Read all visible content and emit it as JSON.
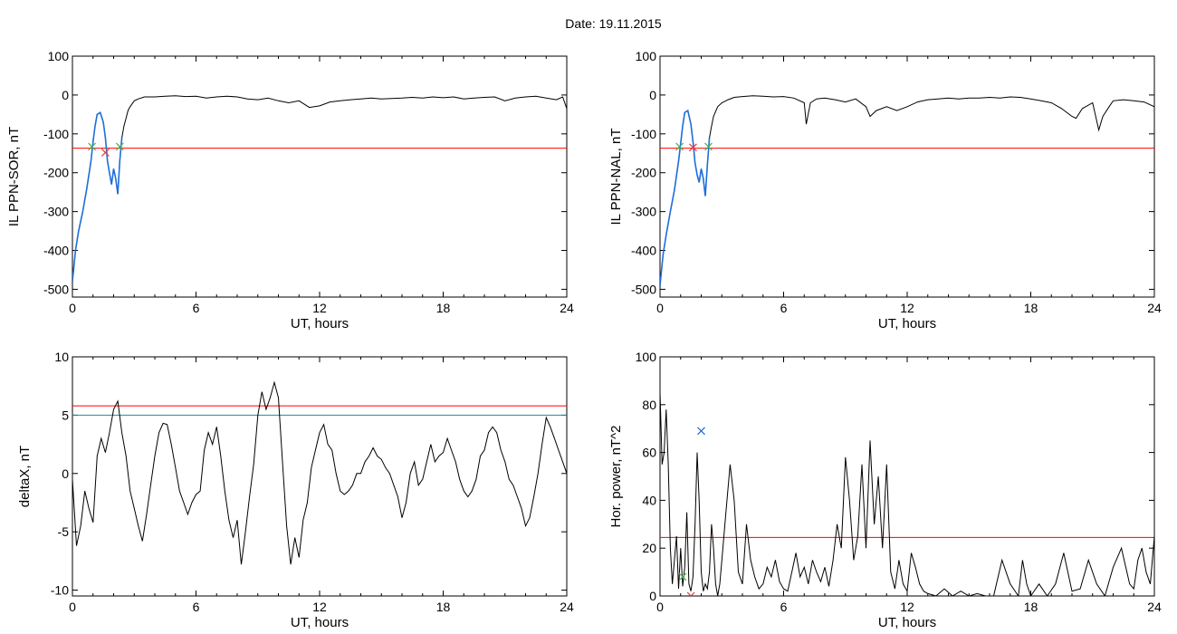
{
  "header": {
    "title": "Date:  19.11.2015"
  },
  "chart_data": [
    {
      "type": "line",
      "xlabel": "UT, hours",
      "ylabel": "IL PPN-SOR, nT",
      "xlim": [
        0,
        24
      ],
      "ylim": [
        -520,
        100
      ],
      "xticks": [
        0,
        6,
        12,
        18,
        24
      ],
      "yticks": [
        100,
        0,
        -100,
        -200,
        -300,
        -400,
        -500
      ],
      "threshold": {
        "value": -137,
        "color": "#ff0000"
      },
      "series": [
        {
          "color": "#000000",
          "x": [
            0,
            0.15,
            0.3,
            0.5,
            0.7,
            0.9,
            1.0,
            1.1,
            1.2,
            1.35,
            1.5,
            1.6,
            1.7,
            1.8,
            1.9,
            2.0,
            2.1,
            2.2,
            2.3,
            2.4,
            2.5,
            2.6,
            2.7,
            2.8,
            3.0,
            3.2,
            3.5,
            4,
            4.5,
            5,
            5.5,
            6,
            6.5,
            7,
            7.5,
            8,
            8.5,
            9,
            9.5,
            10,
            10.5,
            11,
            11.5,
            12,
            12.5,
            13,
            13.5,
            14,
            14.5,
            15,
            15.5,
            16,
            16.5,
            17,
            17.5,
            18,
            18.5,
            19,
            19.5,
            20,
            20.5,
            21,
            21.5,
            22,
            22.5,
            23,
            23.5,
            23.8,
            24
          ],
          "y": [
            -480,
            -400,
            -350,
            -300,
            -240,
            -170,
            -120,
            -80,
            -50,
            -45,
            -70,
            -110,
            -170,
            -200,
            -230,
            -190,
            -215,
            -255,
            -170,
            -110,
            -80,
            -60,
            -40,
            -30,
            -15,
            -10,
            -5,
            -5,
            -3,
            -2,
            -4,
            -3,
            -8,
            -5,
            -3,
            -5,
            -10,
            -12,
            -8,
            -15,
            -20,
            -15,
            -32,
            -28,
            -18,
            -15,
            -12,
            -10,
            -8,
            -10,
            -9,
            -8,
            -6,
            -8,
            -5,
            -7,
            -5,
            -10,
            -8,
            -6,
            -5,
            -15,
            -8,
            -5,
            -3,
            -8,
            -12,
            -5,
            -35
          ]
        },
        {
          "color": "#1e6fd9",
          "x": [
            0,
            0.15,
            0.3,
            0.5,
            0.7,
            0.9,
            1.0,
            1.1,
            1.2,
            1.35,
            1.5,
            1.6,
            1.7,
            1.8,
            1.9,
            2.0,
            2.1,
            2.2,
            2.3,
            2.4
          ],
          "y": [
            -480,
            -400,
            -350,
            -300,
            -240,
            -170,
            -120,
            -80,
            -50,
            -45,
            -70,
            -110,
            -170,
            -200,
            -230,
            -190,
            -215,
            -255,
            -170,
            -110
          ]
        }
      ],
      "markers": [
        {
          "x": 0.95,
          "y": -133,
          "color": "#4caf50"
        },
        {
          "x": 1.6,
          "y": -148,
          "color": "#e53935"
        },
        {
          "x": 2.3,
          "y": -133,
          "color": "#4caf50"
        }
      ]
    },
    {
      "type": "line",
      "xlabel": "UT, hours",
      "ylabel": "IL PPN-NAL, nT",
      "xlim": [
        0,
        24
      ],
      "ylim": [
        -520,
        100
      ],
      "xticks": [
        0,
        6,
        12,
        18,
        24
      ],
      "yticks": [
        100,
        0,
        -100,
        -200,
        -300,
        -400,
        -500
      ],
      "threshold": {
        "value": -137,
        "color": "#ff0000"
      },
      "series": [
        {
          "color": "#000000",
          "x": [
            0,
            0.15,
            0.3,
            0.5,
            0.7,
            0.9,
            1.0,
            1.1,
            1.2,
            1.35,
            1.5,
            1.6,
            1.7,
            1.8,
            1.9,
            2.0,
            2.1,
            2.2,
            2.3,
            2.4,
            2.5,
            2.6,
            2.8,
            3.0,
            3.3,
            3.6,
            4,
            4.5,
            5,
            5.5,
            6,
            6.5,
            7,
            7.1,
            7.3,
            7.6,
            8,
            8.5,
            9,
            9.5,
            10,
            10.2,
            10.5,
            11,
            11.5,
            12,
            12.5,
            13,
            13.5,
            14,
            14.5,
            15,
            15.5,
            16,
            16.5,
            17,
            17.5,
            18,
            18.5,
            19,
            19.5,
            20,
            20.2,
            20.5,
            21,
            21.3,
            21.5,
            21.8,
            22,
            22.5,
            23,
            23.5,
            24
          ],
          "y": [
            -490,
            -410,
            -360,
            -300,
            -245,
            -170,
            -125,
            -80,
            -45,
            -40,
            -75,
            -120,
            -175,
            -205,
            -225,
            -190,
            -215,
            -260,
            -180,
            -110,
            -80,
            -55,
            -30,
            -20,
            -12,
            -6,
            -4,
            -2,
            -3,
            -5,
            -4,
            -8,
            -20,
            -75,
            -20,
            -10,
            -8,
            -12,
            -18,
            -10,
            -30,
            -55,
            -40,
            -30,
            -40,
            -30,
            -18,
            -12,
            -10,
            -8,
            -10,
            -8,
            -8,
            -6,
            -8,
            -5,
            -6,
            -10,
            -15,
            -20,
            -35,
            -55,
            -60,
            -35,
            -20,
            -90,
            -55,
            -30,
            -15,
            -12,
            -15,
            -18,
            -30
          ]
        },
        {
          "color": "#1e6fd9",
          "x": [
            0,
            0.15,
            0.3,
            0.5,
            0.7,
            0.9,
            1.0,
            1.1,
            1.2,
            1.35,
            1.5,
            1.6,
            1.7,
            1.8,
            1.9,
            2.0,
            2.1,
            2.2,
            2.3,
            2.4
          ],
          "y": [
            -490,
            -410,
            -360,
            -300,
            -245,
            -170,
            -125,
            -80,
            -45,
            -40,
            -75,
            -120,
            -175,
            -205,
            -225,
            -190,
            -215,
            -260,
            -180,
            -110
          ]
        }
      ],
      "markers": [
        {
          "x": 0.95,
          "y": -133,
          "color": "#4caf50"
        },
        {
          "x": 1.6,
          "y": -135,
          "color": "#e53935"
        },
        {
          "x": 2.35,
          "y": -133,
          "color": "#4caf50"
        }
      ]
    },
    {
      "type": "line",
      "xlabel": "UT, hours",
      "ylabel": "deltaX, nT",
      "xlim": [
        0,
        24
      ],
      "ylim": [
        -10.5,
        10
      ],
      "xticks": [
        0,
        6,
        12,
        18,
        24
      ],
      "yticks": [
        10,
        5,
        0,
        -5,
        -10
      ],
      "thresholds": [
        {
          "value": 5.8,
          "color": "#ff0000"
        },
        {
          "value": 5.0,
          "color": "#1a8fa0"
        }
      ],
      "series": [
        {
          "color": "#000000",
          "x": [
            0,
            0.2,
            0.4,
            0.6,
            0.8,
            1.0,
            1.2,
            1.4,
            1.6,
            1.8,
            2.0,
            2.2,
            2.4,
            2.6,
            2.8,
            3.0,
            3.2,
            3.4,
            3.6,
            3.8,
            4.0,
            4.2,
            4.4,
            4.6,
            4.8,
            5.0,
            5.2,
            5.4,
            5.6,
            5.8,
            6.0,
            6.2,
            6.4,
            6.6,
            6.8,
            7.0,
            7.2,
            7.4,
            7.6,
            7.8,
            8.0,
            8.2,
            8.4,
            8.6,
            8.8,
            9.0,
            9.2,
            9.4,
            9.6,
            9.8,
            10.0,
            10.2,
            10.4,
            10.6,
            10.8,
            11.0,
            11.2,
            11.4,
            11.6,
            11.8,
            12.0,
            12.2,
            12.4,
            12.6,
            12.8,
            13.0,
            13.2,
            13.4,
            13.6,
            13.8,
            14.0,
            14.2,
            14.4,
            14.6,
            14.8,
            15.0,
            15.2,
            15.4,
            15.6,
            15.8,
            16.0,
            16.2,
            16.4,
            16.6,
            16.8,
            17.0,
            17.2,
            17.4,
            17.6,
            17.8,
            18.0,
            18.2,
            18.4,
            18.6,
            18.8,
            19.0,
            19.2,
            19.4,
            19.6,
            19.8,
            20.0,
            20.2,
            20.4,
            20.6,
            20.8,
            21.0,
            21.2,
            21.4,
            21.6,
            21.8,
            22.0,
            22.2,
            22.4,
            22.6,
            22.8,
            23.0,
            23.2,
            23.4,
            23.6,
            23.8,
            24.0
          ],
          "y": [
            -0.5,
            -6.2,
            -4.5,
            -1.5,
            -3,
            -4.2,
            1.5,
            3,
            1.8,
            3.5,
            5.5,
            6.2,
            3.5,
            1.5,
            -1.5,
            -3,
            -4.5,
            -5.8,
            -3.5,
            -1,
            1.5,
            3.5,
            4.3,
            4.2,
            2.5,
            0.5,
            -1.5,
            -2.5,
            -3.5,
            -2.5,
            -1.8,
            -1.5,
            2,
            3.5,
            2.5,
            4,
            1.5,
            -1.5,
            -4,
            -5.5,
            -4,
            -7.8,
            -5,
            -2,
            0.8,
            5,
            7,
            5.5,
            6.5,
            7.8,
            6.5,
            1,
            -4.5,
            -7.8,
            -5.5,
            -7.2,
            -4,
            -2.5,
            0.5,
            2,
            3.5,
            4.2,
            2.5,
            2,
            0,
            -1.5,
            -1.8,
            -1.5,
            -1,
            0,
            0,
            1,
            1.5,
            2.2,
            1.5,
            1.2,
            0.5,
            0,
            -1,
            -2,
            -3.8,
            -2.5,
            0,
            1,
            -1,
            -0.5,
            1,
            2.5,
            1,
            1.5,
            1.8,
            3,
            2,
            1,
            -0.5,
            -1.5,
            -2,
            -1.5,
            -0.5,
            1.5,
            2,
            3.5,
            4,
            3.5,
            2,
            1,
            -0.5,
            -1,
            -2,
            -3,
            -4.5,
            -3.8,
            -2,
            0,
            2.5,
            4.8,
            4,
            3,
            2,
            1,
            0
          ],
          "_trim": true
        }
      ]
    },
    {
      "type": "line",
      "xlabel": "UT, hours",
      "ylabel": "Hor. power, nT^2",
      "xlim": [
        0,
        24
      ],
      "ylim": [
        0,
        100
      ],
      "xticks": [
        0,
        6,
        12,
        18,
        24
      ],
      "yticks": [
        100,
        80,
        60,
        40,
        20,
        0
      ],
      "threshold": {
        "value": 24.5,
        "color": "#ff0000"
      },
      "series": [
        {
          "color": "#000000",
          "x": [
            0,
            0.1,
            0.2,
            0.3,
            0.4,
            0.5,
            0.6,
            0.7,
            0.8,
            0.9,
            1.0,
            1.1,
            1.2,
            1.3,
            1.4,
            1.5,
            1.6,
            1.7,
            1.8,
            1.9,
            2.0,
            2.1,
            2.2,
            2.3,
            2.4,
            2.5,
            2.6,
            2.7,
            2.8,
            2.9,
            3.0,
            3.2,
            3.4,
            3.6,
            3.8,
            4.0,
            4.2,
            4.4,
            4.6,
            4.8,
            5.0,
            5.2,
            5.4,
            5.6,
            5.8,
            6.0,
            6.2,
            6.4,
            6.6,
            6.8,
            7.0,
            7.2,
            7.4,
            7.6,
            7.8,
            8.0,
            8.2,
            8.4,
            8.6,
            8.8,
            9.0,
            9.2,
            9.4,
            9.6,
            9.8,
            10.0,
            10.2,
            10.4,
            10.6,
            10.8,
            11.0,
            11.2,
            11.4,
            11.6,
            11.8,
            12.0,
            12.2,
            12.4,
            12.6,
            12.8,
            13.0,
            13.4,
            13.8,
            14.2,
            14.6,
            15.0,
            15.4,
            15.8,
            16.2,
            16.6,
            17.0,
            17.4,
            17.6,
            17.8,
            18.0,
            18.4,
            18.8,
            19.2,
            19.6,
            20.0,
            20.4,
            20.8,
            21.2,
            21.6,
            22.0,
            22.4,
            22.8,
            23.0,
            23.2,
            23.4,
            23.6,
            23.8,
            24.0
          ],
          "y": [
            85,
            55,
            60,
            78,
            55,
            20,
            5,
            15,
            25,
            3,
            20,
            4,
            12,
            35,
            5,
            2,
            8,
            30,
            60,
            40,
            10,
            2,
            5,
            3,
            10,
            30,
            20,
            5,
            0,
            5,
            15,
            35,
            55,
            40,
            10,
            5,
            30,
            15,
            8,
            3,
            5,
            12,
            8,
            15,
            6,
            3,
            2,
            10,
            18,
            8,
            12,
            5,
            15,
            10,
            6,
            12,
            4,
            15,
            30,
            20,
            58,
            40,
            15,
            25,
            55,
            20,
            65,
            30,
            50,
            20,
            55,
            10,
            3,
            15,
            5,
            2,
            18,
            12,
            5,
            2,
            1,
            0,
            3,
            0,
            2,
            0,
            1,
            0,
            0,
            15,
            5,
            0,
            15,
            5,
            0,
            5,
            0,
            5,
            18,
            2,
            3,
            15,
            5,
            0,
            12,
            20,
            5,
            3,
            15,
            20,
            10,
            5,
            25
          ],
          "_trim": true
        }
      ],
      "markers": [
        {
          "x": 1.1,
          "y": 8,
          "color": "#4caf50"
        },
        {
          "x": 2.0,
          "y": 69,
          "color": "#1e6fd9"
        },
        {
          "x": 1.5,
          "y": 0,
          "color": "#e53935"
        }
      ]
    }
  ]
}
